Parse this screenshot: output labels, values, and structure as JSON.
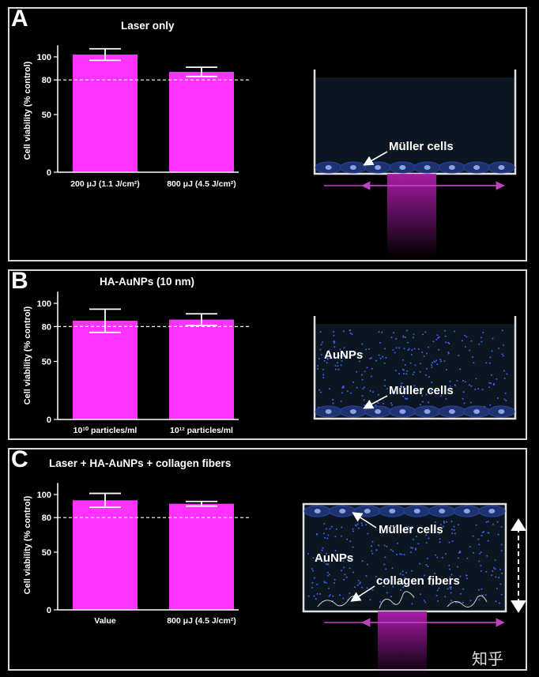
{
  "chart_data": [
    {
      "type": "bar",
      "panel": "A",
      "title": "Laser only",
      "ylabel": "Cell viability (% control)",
      "xlabel": "",
      "ylim": [
        0,
        110
      ],
      "yticks": [
        0,
        50,
        80,
        100
      ],
      "reference_line": 80,
      "categories": [
        "200 μJ (1.1 J/cm²)",
        "800 μJ (4.5 J/cm²)"
      ],
      "series": [
        {
          "values": [
            102,
            87
          ],
          "error": [
            5,
            4
          ]
        }
      ],
      "bar_color": "#ff33ff",
      "schematic": {
        "cells_label": "Müller cells"
      }
    },
    {
      "type": "bar",
      "panel": "B",
      "title": "HA-AuNPs (10 nm)",
      "ylabel": "Cell viability (% control)",
      "xlabel": "",
      "ylim": [
        0,
        110
      ],
      "yticks": [
        0,
        50,
        80,
        100
      ],
      "reference_line": 80,
      "categories": [
        "10¹⁰ particles/ml",
        "10¹² particles/ml"
      ],
      "series": [
        {
          "values": [
            85,
            86
          ],
          "error": [
            10,
            5
          ]
        }
      ],
      "bar_color": "#ff33ff",
      "schematic": {
        "particles_label": "AuNPs",
        "cells_label": "Müller cells"
      }
    },
    {
      "type": "bar",
      "panel": "C",
      "title": "Laser + HA-AuNPs + collagen fibers",
      "ylabel": "Cell viability (% control)",
      "xlabel": "",
      "ylim": [
        0,
        110
      ],
      "yticks": [
        0,
        50,
        80,
        100
      ],
      "reference_line": 80,
      "categories": [
        "Value",
        "800 μJ (4.5 J/cm²)"
      ],
      "series": [
        {
          "values": [
            95,
            92
          ],
          "error": [
            6,
            2
          ]
        }
      ],
      "bar_color": "#ff33ff",
      "schematic": {
        "cells_label": "Müller cells",
        "particles_label": "AuNPs",
        "fibers_label": "collagen fibers"
      }
    }
  ],
  "panels": {
    "A": "A",
    "B": "B",
    "C": "C"
  },
  "watermark": "知乎"
}
